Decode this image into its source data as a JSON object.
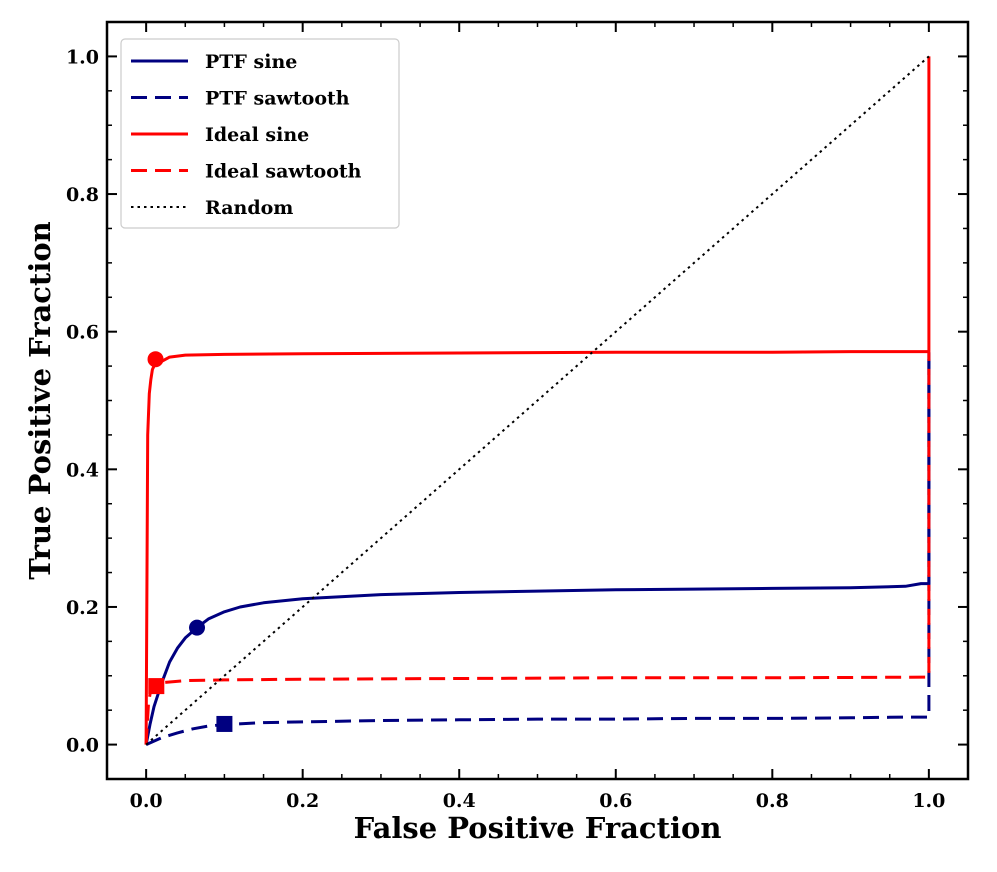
{
  "chart_data": {
    "type": "line",
    "title": "",
    "xlabel": "False Positive Fraction",
    "ylabel": "True Positive Fraction",
    "xlim": [
      -0.05,
      1.05
    ],
    "ylim": [
      -0.05,
      1.05
    ],
    "xticks": [
      0.0,
      0.2,
      0.4,
      0.6,
      0.8,
      1.0
    ],
    "yticks": [
      0.0,
      0.2,
      0.4,
      0.6,
      0.8,
      1.0
    ],
    "xtick_labels": [
      "0.0",
      "0.2",
      "0.4",
      "0.6",
      "0.8",
      "1.0"
    ],
    "ytick_labels": [
      "0.0",
      "0.2",
      "0.4",
      "0.6",
      "0.8",
      "1.0"
    ],
    "minor_tick_step": 0.05,
    "grid": false,
    "legend_position": "top-left",
    "series": [
      {
        "name": "PTF sine",
        "color": "#000080",
        "linestyle": "solid",
        "x": [
          0,
          0.005,
          0.01,
          0.02,
          0.03,
          0.04,
          0.05,
          0.065,
          0.08,
          0.1,
          0.12,
          0.15,
          0.2,
          0.3,
          0.4,
          0.5,
          0.6,
          0.7,
          0.8,
          0.9,
          0.97,
          0.99,
          1.0,
          1.0
        ],
        "y": [
          0,
          0.03,
          0.055,
          0.09,
          0.12,
          0.14,
          0.155,
          0.17,
          0.183,
          0.193,
          0.2,
          0.206,
          0.212,
          0.218,
          0.221,
          0.223,
          0.225,
          0.226,
          0.227,
          0.228,
          0.23,
          0.234,
          0.234,
          0.57
        ]
      },
      {
        "name": "PTF sawtooth",
        "color": "#000080",
        "linestyle": "dashed",
        "x": [
          0,
          0.02,
          0.04,
          0.06,
          0.08,
          0.1,
          0.15,
          0.2,
          0.3,
          0.4,
          0.5,
          0.6,
          0.7,
          0.8,
          0.9,
          0.97,
          1.0,
          1.0
        ],
        "y": [
          0,
          0.01,
          0.017,
          0.023,
          0.027,
          0.029,
          0.032,
          0.033,
          0.035,
          0.036,
          0.037,
          0.037,
          0.038,
          0.038,
          0.039,
          0.04,
          0.04,
          0.57
        ]
      },
      {
        "name": "Ideal sine",
        "color": "#ff0000",
        "linestyle": "solid",
        "x": [
          0,
          0.002,
          0.004,
          0.006,
          0.008,
          0.01,
          0.012,
          0.015,
          0.02,
          0.03,
          0.05,
          0.1,
          0.2,
          0.4,
          0.6,
          0.8,
          0.9,
          1.0,
          1.0
        ],
        "y": [
          0,
          0.45,
          0.51,
          0.53,
          0.545,
          0.55,
          0.56,
          0.562,
          0.557,
          0.563,
          0.566,
          0.567,
          0.568,
          0.569,
          0.57,
          0.57,
          0.571,
          0.571,
          1.0
        ]
      },
      {
        "name": "Ideal sawtooth",
        "color": "#ff0000",
        "linestyle": "dashed",
        "x": [
          0,
          0.003,
          0.006,
          0.01,
          0.015,
          0.02,
          0.05,
          0.1,
          0.2,
          0.4,
          0.6,
          0.8,
          1.0,
          1.0
        ],
        "y": [
          0,
          0.06,
          0.08,
          0.085,
          0.087,
          0.09,
          0.093,
          0.094,
          0.095,
          0.096,
          0.097,
          0.097,
          0.098,
          0.57
        ]
      },
      {
        "name": "Random",
        "color": "#000000",
        "linestyle": "dotted",
        "x": [
          0,
          1
        ],
        "y": [
          0,
          1
        ]
      }
    ],
    "markers": [
      {
        "series": "Ideal sine",
        "shape": "circle",
        "color": "#ff0000",
        "x": 0.012,
        "y": 0.56
      },
      {
        "series": "PTF sine",
        "shape": "circle",
        "color": "#000080",
        "x": 0.065,
        "y": 0.17
      },
      {
        "series": "Ideal sawtooth",
        "shape": "square",
        "color": "#ff0000",
        "x": 0.013,
        "y": 0.085
      },
      {
        "series": "PTF sawtooth",
        "shape": "square",
        "color": "#000080",
        "x": 0.1,
        "y": 0.03
      }
    ]
  }
}
